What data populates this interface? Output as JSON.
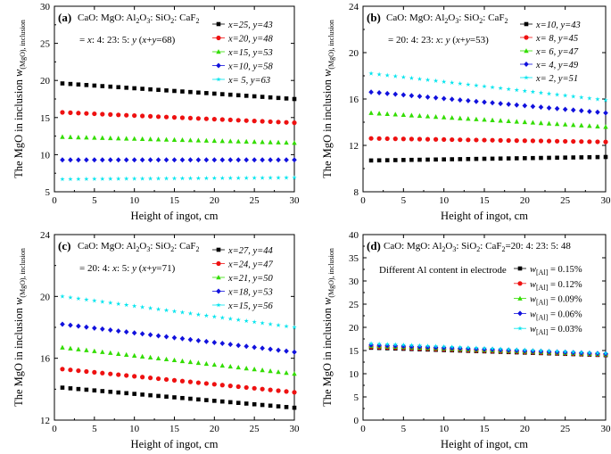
{
  "chart_data": [
    {
      "panel": "(a)",
      "type": "scatter",
      "composition": "CaO: MgO: Al2O3: SiO2: CaF2",
      "ratio": "= x: 4: 23: 5: y  (x+y=68)",
      "xlabel": "Height of ingot, cm",
      "ylabel": "The MgO in inclusion w(MgO), inclusion",
      "xlim": [
        0,
        30
      ],
      "ylim": [
        5,
        30
      ],
      "xticks": [
        "0",
        "5",
        "10",
        "15",
        "20",
        "25",
        "30"
      ],
      "yticks": [
        "5",
        "10",
        "15",
        "20",
        "25",
        "30"
      ],
      "legend_position": "top-right",
      "series": [
        {
          "name": "x=25, y=43",
          "color": "#000000",
          "marker": "square",
          "start": 19.6,
          "end": 17.5
        },
        {
          "name": "x=20, y=48",
          "color": "#ee1111",
          "marker": "circle",
          "start": 15.7,
          "end": 14.3
        },
        {
          "name": "x=15, y=53",
          "color": "#33dd00",
          "marker": "triangle",
          "start": 12.4,
          "end": 11.6
        },
        {
          "name": "x=10, y=58",
          "color": "#1111dd",
          "marker": "diamond",
          "start": 9.3,
          "end": 9.3
        },
        {
          "name": "x=  5, y=63",
          "color": "#00e5ee",
          "marker": "star",
          "start": 6.7,
          "end": 6.9
        }
      ]
    },
    {
      "panel": "(b)",
      "type": "scatter",
      "composition": "CaO: MgO: Al2O3: SiO2: CaF2",
      "ratio": "= 20: 4: 23: x: y  (x+y=53)",
      "xlabel": "Height of ingot, cm",
      "ylabel": "The MgO in inclusion w(MgO), inclusion",
      "xlim": [
        0,
        30
      ],
      "ylim": [
        8,
        24
      ],
      "xticks": [
        "0",
        "5",
        "10",
        "15",
        "20",
        "25",
        "30"
      ],
      "yticks": [
        "8",
        "12",
        "16",
        "20",
        "24"
      ],
      "legend_position": "top-right",
      "series": [
        {
          "name": "x=10, y=43",
          "color": "#000000",
          "marker": "square",
          "start": 10.7,
          "end": 11.0
        },
        {
          "name": "x=  8, y=45",
          "color": "#ee1111",
          "marker": "circle",
          "start": 12.6,
          "end": 12.3
        },
        {
          "name": "x=  6, y=47",
          "color": "#33dd00",
          "marker": "triangle",
          "start": 14.8,
          "end": 13.6
        },
        {
          "name": "x=  4, y=49",
          "color": "#1111dd",
          "marker": "diamond",
          "start": 16.6,
          "end": 14.8
        },
        {
          "name": "x=  2, y=51",
          "color": "#00e5ee",
          "marker": "star",
          "start": 18.2,
          "end": 15.9
        }
      ]
    },
    {
      "panel": "(c)",
      "type": "scatter",
      "composition": "CaO: MgO: Al2O3: SiO2: CaF2",
      "ratio": "= 20: 4: x: 5: y  (x+y=71)",
      "xlabel": "Height of ingot, cm",
      "ylabel": "The MgO in inclusion w(MgO), inclusion",
      "xlim": [
        0,
        30
      ],
      "ylim": [
        12,
        24
      ],
      "xticks": [
        "0",
        "5",
        "10",
        "15",
        "20",
        "25",
        "30"
      ],
      "yticks": [
        "12",
        "16",
        "20",
        "24"
      ],
      "legend_position": "top-right",
      "series": [
        {
          "name": "x=27, y=44",
          "color": "#000000",
          "marker": "square",
          "start": 14.1,
          "end": 12.8
        },
        {
          "name": "x=24, y=47",
          "color": "#ee1111",
          "marker": "circle",
          "start": 15.3,
          "end": 13.8
        },
        {
          "name": "x=21, y=50",
          "color": "#33dd00",
          "marker": "triangle",
          "start": 16.7,
          "end": 15.0
        },
        {
          "name": "x=18, y=53",
          "color": "#1111dd",
          "marker": "diamond",
          "start": 18.2,
          "end": 16.4
        },
        {
          "name": "x=15, y=56",
          "color": "#00e5ee",
          "marker": "star",
          "start": 20.0,
          "end": 18.0
        }
      ]
    },
    {
      "panel": "(d)",
      "type": "scatter",
      "composition": "CaO: MgO: Al2O3: SiO2: CaF2=20: 4: 23: 5: 48",
      "subtitle": "Different Al content in electrode",
      "xlabel": "Height of ingot, cm",
      "ylabel": "The MgO in inclusion w(MgO), inclusion",
      "xlim": [
        0,
        30
      ],
      "ylim": [
        0,
        40
      ],
      "xticks": [
        "0",
        "5",
        "10",
        "15",
        "20",
        "25",
        "30"
      ],
      "yticks": [
        "0",
        "5",
        "10",
        "15",
        "20",
        "25",
        "30",
        "35",
        "40"
      ],
      "legend_position": "right",
      "series": [
        {
          "name": "w[Al] = 0.15%",
          "color": "#000000",
          "marker": "square",
          "start": 15.6,
          "end": 14.0
        },
        {
          "name": "w[Al] = 0.12%",
          "color": "#ee1111",
          "marker": "circle",
          "start": 15.8,
          "end": 14.1
        },
        {
          "name": "w[Al] = 0.09%",
          "color": "#33dd00",
          "marker": "triangle",
          "start": 16.0,
          "end": 14.2
        },
        {
          "name": "w[Al] = 0.06%",
          "color": "#1111dd",
          "marker": "diamond",
          "start": 16.2,
          "end": 14.3
        },
        {
          "name": "w[Al] = 0.03%",
          "color": "#00e5ee",
          "marker": "star",
          "start": 16.5,
          "end": 14.4
        }
      ]
    }
  ]
}
